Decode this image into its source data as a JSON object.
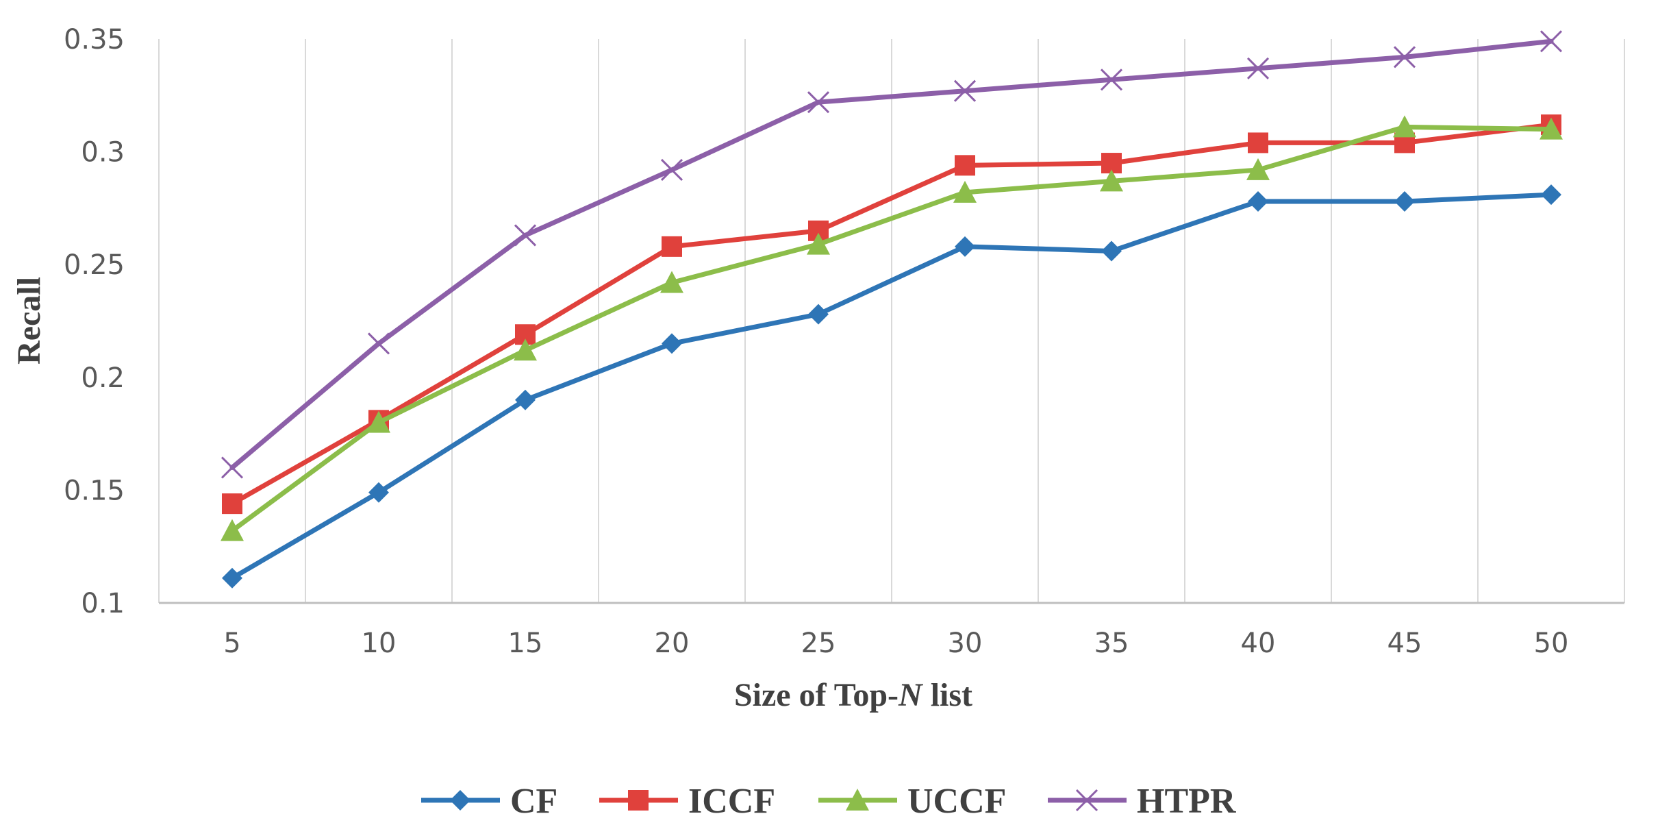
{
  "chart_data": {
    "type": "line",
    "title": "",
    "xlabel_prefix": "Size of Top-",
    "xlabel_italic": "N",
    "xlabel_suffix": " list",
    "ylabel": "Recall",
    "categories": [
      "5",
      "10",
      "15",
      "20",
      "25",
      "30",
      "35",
      "40",
      "45",
      "50"
    ],
    "yticks": [
      "0.1",
      "0.15",
      "0.2",
      "0.25",
      "0.3",
      "0.35"
    ],
    "ylim": [
      0.1,
      0.35
    ],
    "grid": "vertical",
    "legend_position": "bottom",
    "series": [
      {
        "name": "CF",
        "color": "#2e75b6",
        "marker": "diamond",
        "values": [
          0.111,
          0.149,
          0.19,
          0.215,
          0.228,
          0.258,
          0.256,
          0.278,
          0.278,
          0.281
        ]
      },
      {
        "name": "ICCF",
        "color": "#e0413c",
        "marker": "square",
        "values": [
          0.144,
          0.181,
          0.219,
          0.258,
          0.265,
          0.294,
          0.295,
          0.304,
          0.304,
          0.312
        ]
      },
      {
        "name": "UCCF",
        "color": "#8cbd4a",
        "marker": "triangle",
        "values": [
          0.132,
          0.18,
          0.212,
          0.242,
          0.259,
          0.282,
          0.287,
          0.292,
          0.311,
          0.31
        ]
      },
      {
        "name": "HTPR",
        "color": "#8c5fa8",
        "marker": "x",
        "values": [
          0.16,
          0.215,
          0.263,
          0.292,
          0.322,
          0.327,
          0.332,
          0.337,
          0.342,
          0.349
        ]
      }
    ]
  }
}
